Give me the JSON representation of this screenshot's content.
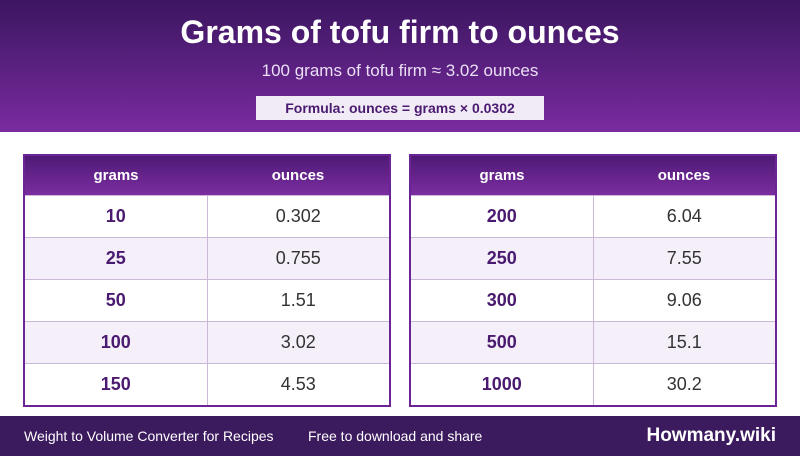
{
  "header": {
    "title": "Grams of tofu firm to ounces",
    "subtitle": "100 grams of tofu firm ≈ 3.02 ounces",
    "formula": "Formula: ounces = grams × 0.0302"
  },
  "tables": [
    {
      "columns": [
        "grams",
        "ounces"
      ],
      "rows": [
        [
          "10",
          "0.302"
        ],
        [
          "25",
          "0.755"
        ],
        [
          "50",
          "1.51"
        ],
        [
          "100",
          "3.02"
        ],
        [
          "150",
          "4.53"
        ]
      ]
    },
    {
      "columns": [
        "grams",
        "ounces"
      ],
      "rows": [
        [
          "200",
          "6.04"
        ],
        [
          "250",
          "7.55"
        ],
        [
          "300",
          "9.06"
        ],
        [
          "500",
          "15.1"
        ],
        [
          "1000",
          "30.2"
        ]
      ]
    }
  ],
  "footer": {
    "left": "Weight to Volume Converter for Recipes",
    "middle": "Free to download and share",
    "brand": "Howmany.wiki"
  }
}
